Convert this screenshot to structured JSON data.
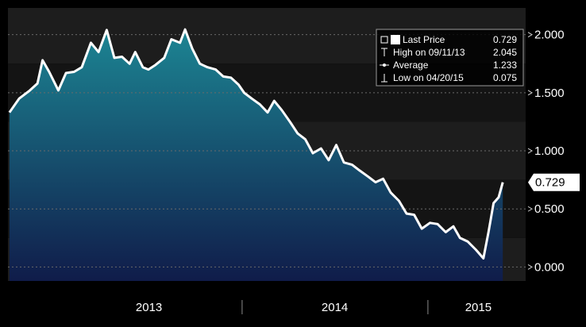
{
  "chart_data": {
    "type": "area",
    "series": [
      {
        "name": "Last Price",
        "x": [
          "2012-10-01",
          "2012-10-20",
          "2012-11-10",
          "2012-11-25",
          "2012-12-05",
          "2012-12-18",
          "2013-01-05",
          "2013-01-20",
          "2013-02-05",
          "2013-02-20",
          "2013-03-10",
          "2013-03-25",
          "2013-04-10",
          "2013-04-25",
          "2013-05-10",
          "2013-05-25",
          "2013-06-05",
          "2013-06-20",
          "2013-07-01",
          "2013-07-15",
          "2013-08-01",
          "2013-08-15",
          "2013-09-01",
          "2013-09-11",
          "2013-09-25",
          "2013-10-10",
          "2013-10-25",
          "2013-11-10",
          "2013-11-25",
          "2013-12-10",
          "2013-12-25",
          "2014-01-05",
          "2014-01-20",
          "2014-02-05",
          "2014-02-20",
          "2014-03-05",
          "2014-03-20",
          "2014-04-05",
          "2014-04-20",
          "2014-05-05",
          "2014-05-20",
          "2014-06-05",
          "2014-06-20",
          "2014-07-05",
          "2014-07-20",
          "2014-08-05",
          "2014-08-20",
          "2014-09-05",
          "2014-09-20",
          "2014-10-05",
          "2014-10-20",
          "2014-11-05",
          "2014-11-20",
          "2014-12-05",
          "2014-12-20",
          "2015-01-05",
          "2015-01-20",
          "2015-02-05",
          "2015-02-20",
          "2015-03-05",
          "2015-03-20",
          "2015-04-05",
          "2015-04-20",
          "2015-04-30",
          "2015-05-10",
          "2015-05-20",
          "2015-05-28"
        ],
        "values": [
          1.33,
          1.45,
          1.52,
          1.58,
          1.78,
          1.68,
          1.52,
          1.67,
          1.68,
          1.72,
          1.93,
          1.85,
          2.04,
          1.8,
          1.81,
          1.75,
          1.85,
          1.72,
          1.7,
          1.74,
          1.8,
          1.96,
          1.93,
          2.045,
          1.88,
          1.75,
          1.72,
          1.7,
          1.64,
          1.63,
          1.57,
          1.5,
          1.45,
          1.4,
          1.33,
          1.43,
          1.35,
          1.25,
          1.15,
          1.1,
          0.98,
          1.02,
          0.92,
          1.05,
          0.9,
          0.88,
          0.83,
          0.78,
          0.73,
          0.76,
          0.64,
          0.57,
          0.46,
          0.45,
          0.33,
          0.38,
          0.37,
          0.3,
          0.35,
          0.25,
          0.22,
          0.15,
          0.075,
          0.3,
          0.55,
          0.6,
          0.729
        ]
      }
    ],
    "ylim": [
      -0.12,
      2.23
    ],
    "yticks": [
      0.0,
      0.5,
      1.0,
      1.5,
      2.0
    ],
    "ytick_labels": [
      "0.000",
      "0.500",
      "1.000",
      "1.500",
      "2.000"
    ],
    "xlim": [
      "2012-09-28",
      "2015-07-12"
    ],
    "year_labels": [
      {
        "label": "2013",
        "center": "2013-07-02"
      },
      {
        "label": "2014",
        "center": "2014-07-02"
      },
      {
        "label": "2015",
        "center": "2015-04-10"
      }
    ],
    "year_separators": [
      "2014-01-01",
      "2015-01-01"
    ],
    "last_value_label": "0.729",
    "legend": {
      "position": "top-right",
      "rows": [
        {
          "icon": "square-icon",
          "label": "Last Price",
          "value": "0.729"
        },
        {
          "icon": "high-marker-icon",
          "label": "High on 09/11/13",
          "value": "2.045"
        },
        {
          "icon": "average-marker-icon",
          "label": "Average",
          "value": "1.233"
        },
        {
          "icon": "low-marker-icon",
          "label": "Low on 04/20/15",
          "value": "0.075"
        }
      ]
    },
    "grid": true,
    "colors": {
      "line": "#ffffff",
      "area_top": "#1c8593",
      "area_bottom": "#101c4a",
      "background": "#000000",
      "plot_band_dark": "#141414",
      "plot_band_light": "#1d1d1d",
      "text": "#ffffff"
    }
  }
}
